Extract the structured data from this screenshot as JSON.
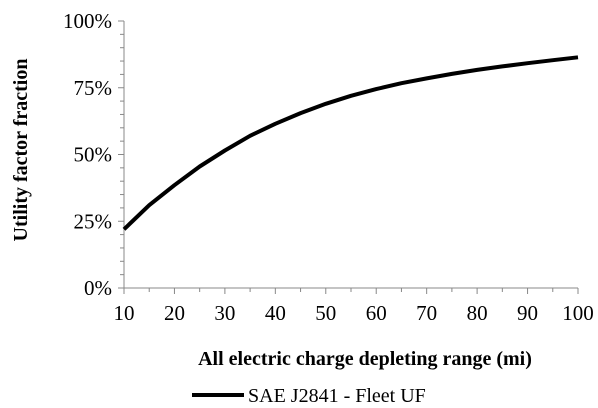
{
  "chart_data": {
    "type": "line",
    "title": "",
    "xlabel": "All electric charge depleting range (mi)",
    "ylabel": "Utility factor fraction",
    "xlim": [
      10,
      100
    ],
    "ylim": [
      0,
      1
    ],
    "x_ticks": [
      10,
      20,
      30,
      40,
      50,
      60,
      70,
      80,
      90,
      100
    ],
    "x_tick_labels": [
      "10",
      "20",
      "30",
      "40",
      "50",
      "60",
      "70",
      "80",
      "90",
      "100"
    ],
    "y_ticks": [
      0,
      0.25,
      0.5,
      0.75,
      1.0
    ],
    "y_tick_labels": [
      "0%",
      "25%",
      "50%",
      "75%",
      "100%"
    ],
    "grid": false,
    "legend_position": "bottom",
    "series": [
      {
        "name": "SAE J2841 - Fleet UF",
        "color": "#000000",
        "x": [
          10,
          15,
          20,
          25,
          30,
          35,
          40,
          45,
          50,
          55,
          60,
          65,
          70,
          75,
          80,
          85,
          90,
          95,
          100
        ],
        "y": [
          0.22,
          0.31,
          0.385,
          0.455,
          0.515,
          0.57,
          0.615,
          0.655,
          0.69,
          0.72,
          0.745,
          0.767,
          0.785,
          0.802,
          0.817,
          0.83,
          0.842,
          0.853,
          0.864
        ]
      }
    ]
  }
}
